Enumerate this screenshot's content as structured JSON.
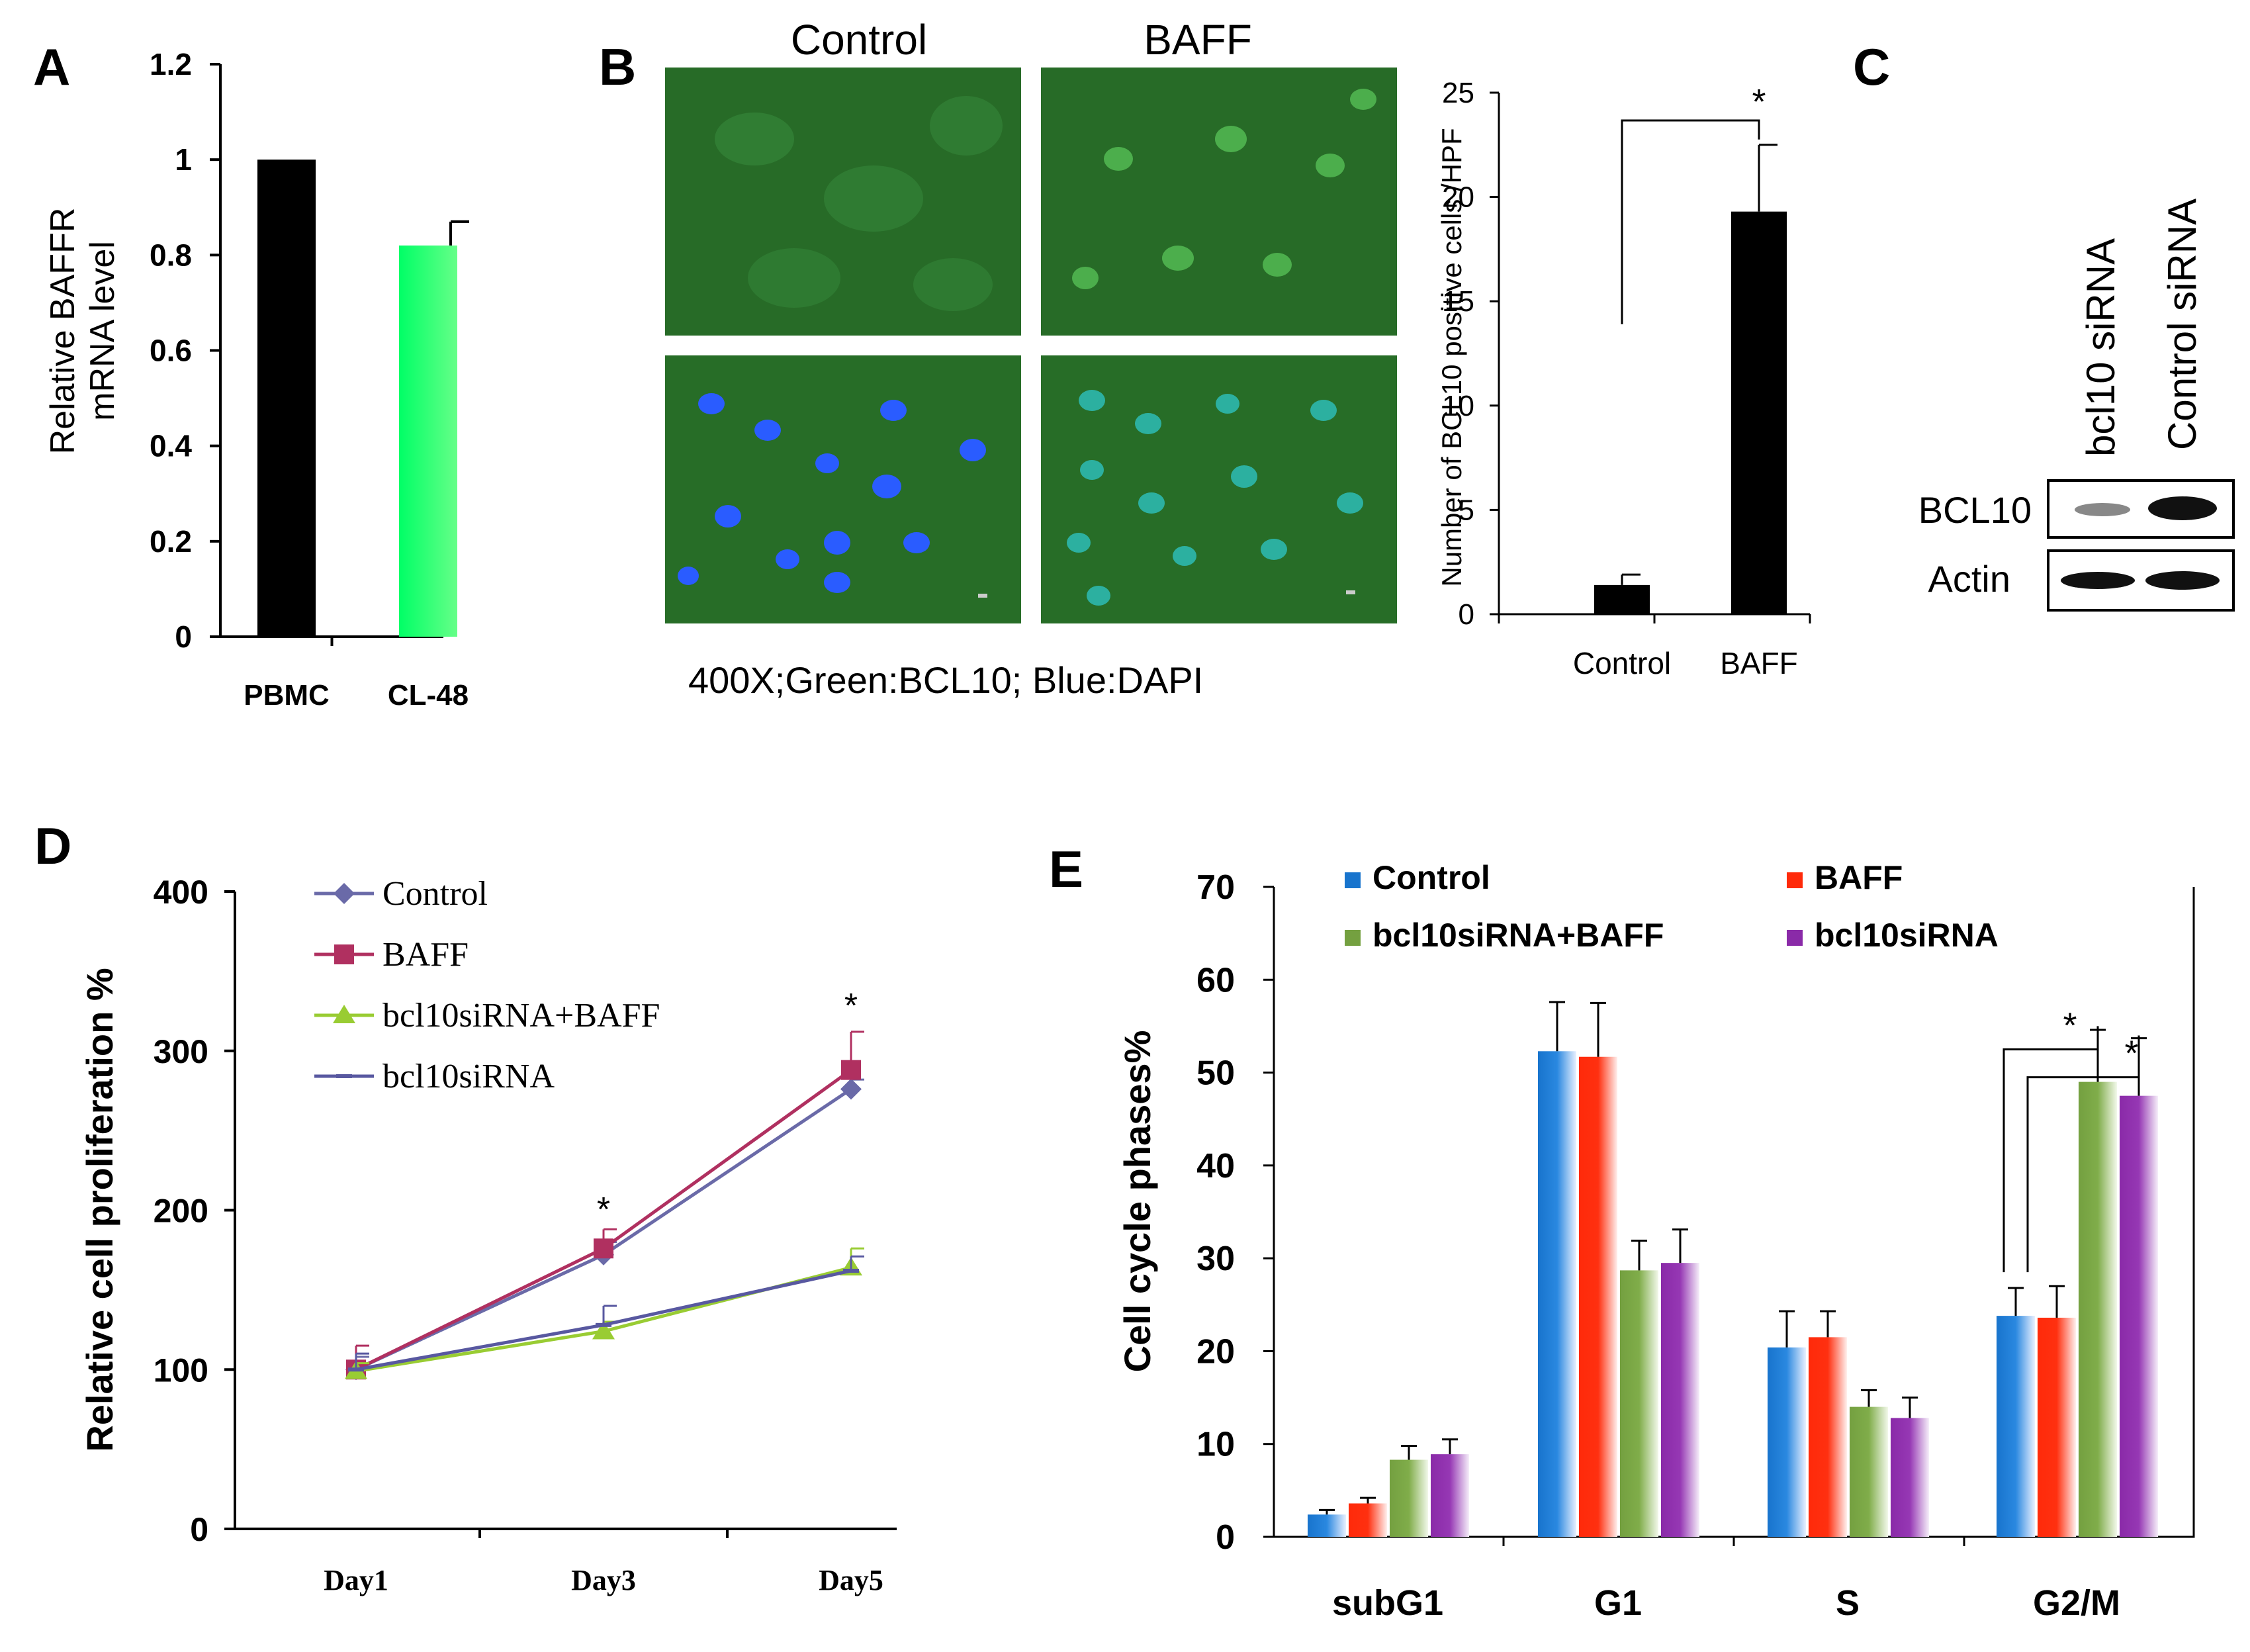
{
  "panel_labels": {
    "a": "A",
    "b": "B",
    "c": "C",
    "d": "D",
    "e": "E"
  },
  "colors": {
    "black": "#000000",
    "cl48": "#39ff6e",
    "control_blue": "#1874cd",
    "baff_red": "#ff2a0a",
    "combo_green": "#74a040",
    "sirna_purple": "#8a2aa8",
    "d_control": "#6a6aa8",
    "d_baff": "#b03060",
    "d_combo": "#99cc33",
    "d_sirna": "#5858a0"
  },
  "chart_data": [
    {
      "id": "A",
      "type": "bar",
      "title": "",
      "categories": [
        "PBMC",
        "CL-48"
      ],
      "values": [
        1.0,
        0.82
      ],
      "errors": [
        0,
        0.05
      ],
      "ylabel": "Relative BAFFR mRNA level",
      "ylabel_lines": [
        "Relative BAFFR",
        "mRNA level"
      ],
      "ylim": [
        0,
        1.2
      ],
      "yticks": [
        0,
        0.2,
        0.4,
        0.6,
        0.8,
        1,
        1.2
      ],
      "ytick_labels": [
        "0",
        "0.2",
        "0.4",
        "0.6",
        "0.8",
        "1",
        "1.2"
      ]
    },
    {
      "id": "B",
      "type": "bar",
      "categories": [
        "Control",
        "BAFF"
      ],
      "values": [
        1.4,
        19.3
      ],
      "errors": [
        0.5,
        3.2
      ],
      "ylabel": "Number of BCL10 positive cells /HPF",
      "ylim": [
        0,
        25
      ],
      "yticks": [
        0,
        5,
        10,
        15,
        20,
        25
      ],
      "significance": "*"
    },
    {
      "id": "D",
      "type": "line",
      "categories": [
        "Day1",
        "Day3",
        "Day5"
      ],
      "series": [
        {
          "name": "Control",
          "values": [
            100,
            172,
            276
          ],
          "errors": [
            8,
            8,
            6
          ],
          "marker": "diamond"
        },
        {
          "name": "BAFF",
          "values": [
            100,
            176,
            288
          ],
          "errors": [
            15,
            12,
            24
          ],
          "marker": "square"
        },
        {
          "name": "bcl10siRNA+BAFF",
          "values": [
            99,
            124,
            164
          ],
          "errors": [
            5,
            6,
            12
          ],
          "marker": "triangle"
        },
        {
          "name": "bcl10siRNA",
          "values": [
            100,
            128,
            162
          ],
          "errors": [
            10,
            12,
            9
          ],
          "marker": "dash"
        }
      ],
      "ylabel": "Relative cell proliferation %",
      "ylim": [
        0,
        400
      ],
      "yticks": [
        0,
        100,
        200,
        300,
        400
      ],
      "significance": [
        "*",
        "*"
      ]
    },
    {
      "id": "E",
      "type": "bar",
      "categories": [
        "subG1",
        "G1",
        "S",
        "G2/M"
      ],
      "series": [
        {
          "name": "Control",
          "values": [
            2.4,
            52.3,
            20.4,
            23.8
          ],
          "errors": [
            0.5,
            5.3,
            3.9,
            3.0
          ]
        },
        {
          "name": "BAFF",
          "values": [
            3.6,
            51.7,
            21.5,
            23.6
          ],
          "errors": [
            0.6,
            5.8,
            2.8,
            3.4
          ]
        },
        {
          "name": "bcl10siRNA+BAFF",
          "values": [
            8.3,
            28.7,
            14.0,
            49.0
          ],
          "errors": [
            1.5,
            3.2,
            1.8,
            5.6
          ]
        },
        {
          "name": "bcl10siRNA",
          "values": [
            8.9,
            29.5,
            12.8,
            47.5
          ],
          "errors": [
            1.6,
            3.6,
            2.2,
            6.2
          ]
        }
      ],
      "ylabel": "Cell cycle phases%",
      "ylim": [
        0,
        70
      ],
      "yticks": [
        0,
        10,
        20,
        30,
        40,
        50,
        60,
        70
      ],
      "significance": [
        "*",
        "*"
      ]
    }
  ],
  "panel_b": {
    "col_labels": [
      "Control",
      "BAFF"
    ],
    "caption": "400X;Green:BCL10; Blue:DAPI"
  },
  "panel_c": {
    "lanes": [
      "bcl10 siRNA",
      "Control siRNA"
    ],
    "rows": [
      "BCL10",
      "Actin"
    ]
  }
}
